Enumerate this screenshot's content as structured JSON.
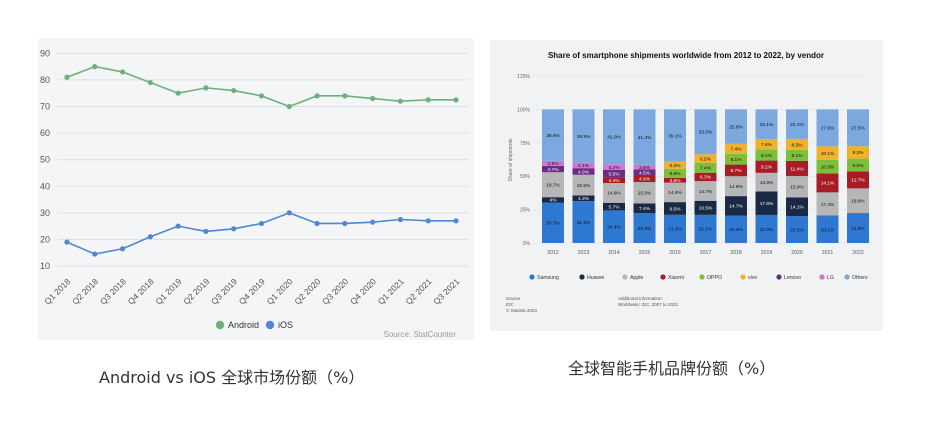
{
  "captions": {
    "left": "Android vs iOS 全球市场份额（%）",
    "right": "全球智能手机品牌份额（%）"
  },
  "chart_data": [
    {
      "type": "line",
      "categories": [
        "Q1 2018",
        "Q2 2018",
        "Q3 2018",
        "Q4 2018",
        "Q1 2019",
        "Q2 2019",
        "Q3 2019",
        "Q4 2019",
        "Q1 2020",
        "Q2 2020",
        "Q3 2020",
        "Q4 2020",
        "Q1 2021",
        "Q2 2021",
        "Q3 2021"
      ],
      "series": [
        {
          "name": "Android",
          "color": "#6db07c",
          "values": [
            81,
            85,
            83,
            79,
            75,
            77,
            76,
            74,
            70,
            74,
            74,
            73,
            72,
            72.5,
            72.5
          ]
        },
        {
          "name": "iOS",
          "color": "#4f86d6",
          "values": [
            19,
            14.5,
            16.5,
            21,
            25,
            23,
            24,
            26,
            30,
            26,
            26,
            26.5,
            27.5,
            27,
            27
          ]
        }
      ],
      "yticks": [
        10,
        20,
        30,
        40,
        50,
        60,
        70,
        80,
        90
      ],
      "ylim": [
        7,
        92
      ],
      "grid": true,
      "legend": "bottom",
      "source": "Source: StatCounter"
    },
    {
      "type": "bar",
      "stacked": true,
      "title": "Share of smartphone shipments worldwide from 2012 to 2022, by vendor",
      "ylabel": "Share of shipments",
      "yticks": [
        "0%",
        "25%",
        "50%",
        "75%",
        "100%",
        "125%"
      ],
      "ylim": [
        0,
        125
      ],
      "categories": [
        "2012",
        "2013",
        "2014",
        "2015",
        "2016",
        "2017",
        "2018",
        "2019",
        "2020",
        "2021",
        "2022"
      ],
      "series": [
        {
          "name": "Samsung",
          "color": "#2f78d1",
          "values": [
            30.3,
            31.3,
            24.4,
            22.3,
            21.1,
            21.1,
            20.4,
            21.0,
            20.1,
            20.1,
            21.8
          ],
          "labels": [
            "30.3%",
            "31.3%",
            "24.4%",
            "22.3%",
            "21.1%",
            "21.1%",
            "20.4%",
            "21.0%",
            "20.1%",
            "20.1%",
            "21.8%"
          ]
        },
        {
          "name": "Huawei",
          "color": "#1b2a44",
          "values": [
            4.0,
            4.3,
            5.7,
            7.4,
            9.5,
            10.5,
            14.7,
            17.6,
            14.1,
            0.4,
            0.3
          ],
          "labels": [
            "4%",
            "4.3%",
            "5.7%",
            "7.4%",
            "9.5%",
            "10.5%",
            "14.7%",
            "17.6%",
            "14.1%",
            "",
            ""
          ]
        },
        {
          "name": "Apple",
          "color": "#b5b6b8",
          "values": [
            18.7,
            15.5,
            14.8,
            15.9,
            14.6,
            14.7,
            14.9,
            13.9,
            15.9,
            17.4,
            18.8
          ],
          "labels": [
            "18.7%",
            "15.5%",
            "14.8%",
            "15.9%",
            "14.6%",
            "14.7%",
            "14.9%",
            "13.9%",
            "15.9%",
            "17.4%",
            "18.8%"
          ]
        },
        {
          "name": "Xiaomi",
          "color": "#a81c25",
          "values": [
            0,
            0,
            4.4,
            4.9,
            3.6,
            6.3,
            8.7,
            9.2,
            11.4,
            14.1,
            12.7
          ],
          "labels": [
            "",
            "",
            "4.4%",
            "4.9%",
            "3.6%",
            "6.3%",
            "8.7%",
            "9.2%",
            "11.4%",
            "14.1%",
            "12.7%"
          ]
        },
        {
          "name": "OPPO",
          "color": "#7bbf3a",
          "values": [
            0,
            0,
            0,
            0,
            6.8,
            7.4,
            8.1,
            8.4,
            8.1,
            10.3,
            9.6
          ],
          "labels": [
            "",
            "",
            "",
            "",
            "6.8%",
            "7.4%",
            "8.1%",
            "8.4%",
            "8.1%",
            "10.3%",
            "9.6%"
          ]
        },
        {
          "name": "vivo",
          "color": "#f0b12d",
          "values": [
            0,
            0,
            0,
            0,
            5.3,
            6.5,
            7.4,
            7.8,
            8.3,
            10.1,
            9.3
          ],
          "labels": [
            "",
            "",
            "",
            "",
            "5.3%",
            "6.5%",
            "7.4%",
            "7.8%",
            "8.3%",
            "10.1%",
            "9.3%"
          ]
        },
        {
          "name": "Lenovo",
          "color": "#6a2d84",
          "values": [
            4.7,
            4.9,
            5.5,
            4.5,
            0,
            0,
            0,
            0,
            0,
            0,
            0
          ],
          "labels": [
            "4.7%",
            "4.9%",
            "5.5%",
            "4.5%",
            "",
            "",
            "",
            "",
            "",
            "",
            ""
          ]
        },
        {
          "name": "LG",
          "color": "#d174d6",
          "values": [
            3.8,
            4.1,
            4.2,
            3.6,
            0,
            0,
            0,
            0,
            0,
            0,
            0
          ],
          "labels": [
            "3.8%",
            "4.1%",
            "4.2%",
            "3.6%",
            "",
            "",
            "",
            "",
            "",
            "",
            ""
          ]
        },
        {
          "name": "Others",
          "color": "#7ba8de",
          "values": [
            38.5,
            39.9,
            41.0,
            41.4,
            39.1,
            33.5,
            25.8,
            22.1,
            22.1,
            27.6,
            27.5
          ],
          "labels": [
            "38.5%",
            "39.9%",
            "41.0%",
            "41.4%",
            "39.1%",
            "33.5%",
            "25.8%",
            "22.1%",
            "22.1%",
            "27.6%",
            "27.5%"
          ]
        }
      ],
      "legend": "bottom",
      "source": "Source\nIDC\n© Statista 2023",
      "additional_info": "Additional Information:\nWorldwide; IDC; 2007 to 2022"
    }
  ]
}
